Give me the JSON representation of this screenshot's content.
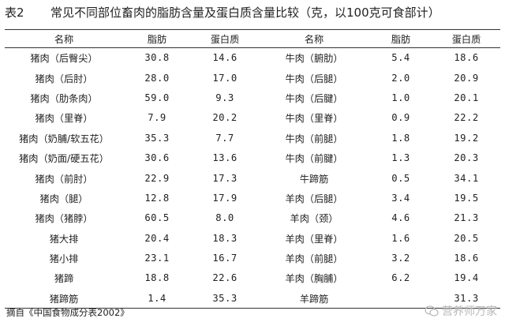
{
  "title": {
    "table_no": "表2",
    "text": "常见不同部位畜肉的脂肪含量及蛋白质含量比较（克，以100克可食部计）"
  },
  "headers": [
    "名称",
    "脂肪",
    "蛋白质",
    "名称",
    "脂肪",
    "蛋白质"
  ],
  "rows": [
    [
      {
        "name": "猪肉（后臀尖）",
        "fat": "30.8",
        "protein": "14.6"
      },
      {
        "name": "牛肉（腑肋）",
        "fat": "5.4",
        "protein": "18.6"
      }
    ],
    [
      {
        "name": "猪肉（后肘）",
        "fat": "28.0",
        "protein": "17.0"
      },
      {
        "name": "牛肉（后腿）",
        "fat": "2.0",
        "protein": "20.9"
      }
    ],
    [
      {
        "name": "猪肉（肋条肉）",
        "fat": "59.0",
        "protein": "9.3"
      },
      {
        "name": "牛肉（后腱）",
        "fat": "1.0",
        "protein": "20.1"
      }
    ],
    [
      {
        "name": "猪肉（里脊）",
        "fat": "7.9",
        "protein": "20.2"
      },
      {
        "name": "牛肉（里脊）",
        "fat": "0.9",
        "protein": "22.2"
      }
    ],
    [
      {
        "name": "猪肉（奶脯/软五花）",
        "fat": "35.3",
        "protein": "7.7"
      },
      {
        "name": "牛肉（前腿）",
        "fat": "1.8",
        "protein": "19.2"
      }
    ],
    [
      {
        "name": "猪肉（奶面/硬五花）",
        "fat": "30.6",
        "protein": "13.6"
      },
      {
        "name": "牛肉（前腱）",
        "fat": "1.3",
        "protein": "20.3"
      }
    ],
    [
      {
        "name": "猪肉（前肘）",
        "fat": "22.9",
        "protein": "17.3"
      },
      {
        "name": "牛蹄筋",
        "fat": "0.5",
        "protein": "34.1"
      }
    ],
    [
      {
        "name": "猪肉（腿）",
        "fat": "12.8",
        "protein": "17.9"
      },
      {
        "name": "羊肉（后腿）",
        "fat": "3.4",
        "protein": "19.5"
      }
    ],
    [
      {
        "name": "猪肉（猪脖）",
        "fat": "60.5",
        "protein": "8.0"
      },
      {
        "name": "羊肉（颈）",
        "fat": "4.6",
        "protein": "21.3"
      }
    ],
    [
      {
        "name": "猪大排",
        "fat": "20.4",
        "protein": "18.3"
      },
      {
        "name": "羊肉（里脊）",
        "fat": "1.6",
        "protein": "20.5"
      }
    ],
    [
      {
        "name": "猪小排",
        "fat": "23.1",
        "protein": "16.7"
      },
      {
        "name": "羊肉（前腿）",
        "fat": "3.2",
        "protein": "18.6"
      }
    ],
    [
      {
        "name": "猪蹄",
        "fat": "18.8",
        "protein": "22.6"
      },
      {
        "name": "羊肉（胸脯）",
        "fat": "6.2",
        "protein": "19.4"
      }
    ],
    [
      {
        "name": "猪蹄筋",
        "fat": "1.4",
        "protein": "35.3"
      },
      {
        "name": "羊蹄筋",
        "fat": "",
        "protein": "31.3"
      }
    ]
  ],
  "source": "摘自《中国食物成分表2002》",
  "watermark": {
    "text": "营养师万家",
    "icon": "wechat-icon"
  }
}
